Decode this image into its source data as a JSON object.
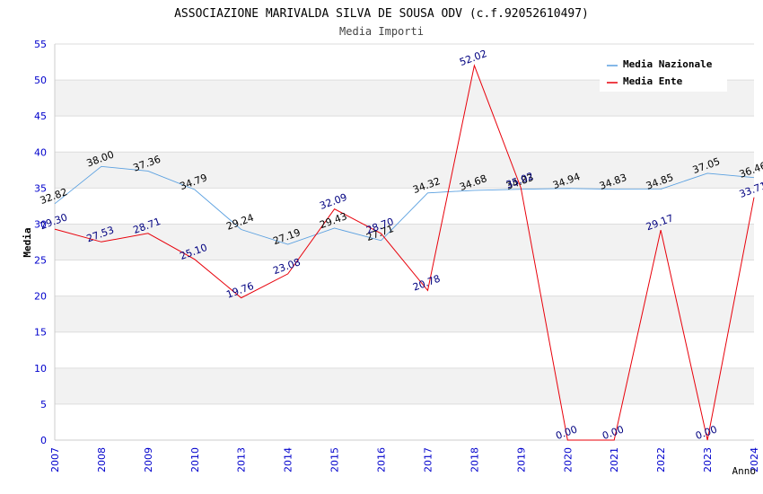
{
  "title": "ASSOCIAZIONE MARIVALDA SILVA DE SOUSA ODV (c.f.92052610497)",
  "subtitle": "Media Importi",
  "chart_data": {
    "type": "line",
    "title": "ASSOCIAZIONE MARIVALDA SILVA DE SOUSA ODV (c.f.92052610497)",
    "subtitle": "Media Importi",
    "xlabel": "Anno",
    "ylabel": "Media",
    "ylim": [
      0,
      55
    ],
    "yticks": [
      0,
      5,
      10,
      15,
      20,
      25,
      30,
      35,
      40,
      45,
      50,
      55
    ],
    "grid": true,
    "legend_position": "top-right",
    "categories": [
      "2007",
      "2008",
      "2009",
      "2010",
      "2013",
      "2014",
      "2015",
      "2016",
      "2017",
      "2018",
      "2019",
      "2020",
      "2021",
      "2022",
      "2023",
      "2024"
    ],
    "series": [
      {
        "name": "Media Nazionale",
        "color": "#5aa0e0",
        "label_color": "#000000",
        "values": [
          32.82,
          38.0,
          37.36,
          34.79,
          29.24,
          27.19,
          29.43,
          27.71,
          34.32,
          34.68,
          34.83,
          34.94,
          34.83,
          34.85,
          37.05,
          36.46
        ],
        "labels": [
          "32.82",
          "38.00",
          "37.36",
          "34.79",
          "29.24",
          "27.19",
          "29.43",
          "27.71",
          "34.32",
          "34.68",
          "34.83",
          "34.94",
          "34.83",
          "34.85",
          "37.05",
          "36.46"
        ]
      },
      {
        "name": "Media Ente",
        "color": "#e8000a",
        "label_color": "#000080",
        "values": [
          29.3,
          27.53,
          28.71,
          25.1,
          19.76,
          23.08,
          32.09,
          28.7,
          20.78,
          52.02,
          35.02,
          0.0,
          0.0,
          29.17,
          0.0,
          33.71
        ],
        "labels": [
          "29.30",
          "27.53",
          "28.71",
          "25.10",
          "19.76",
          "23.08",
          "32.09",
          "28.70",
          "20.78",
          "52.02",
          "35.02",
          "0.00",
          "0.00",
          "29.17",
          "0.00",
          "33.71"
        ]
      }
    ]
  },
  "colors": {
    "axis_text": "#0000cc",
    "grid_band": "#f2f2f2",
    "grid_line": "#dddddd"
  }
}
